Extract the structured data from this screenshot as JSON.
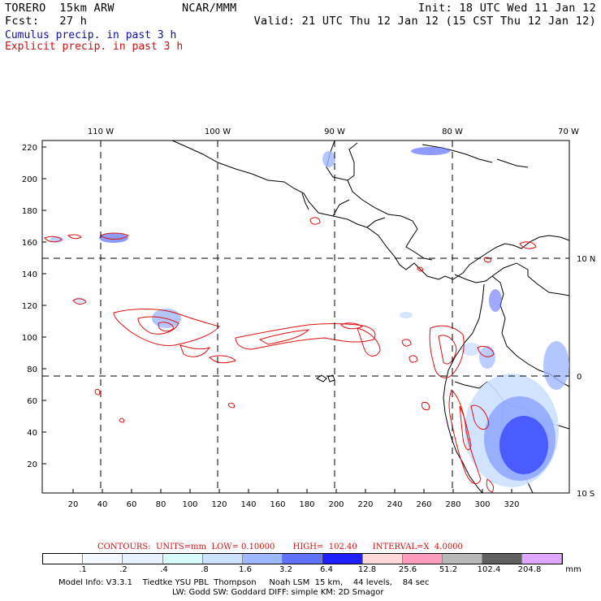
{
  "header": {
    "model": "TORERO  15km ARW",
    "org": "NCAR/MMM",
    "init": "Init: 18 UTC Wed 11 Jan 12",
    "fcst": "Fcst:   27 h",
    "valid": "Valid: 21 UTC Thu 12 Jan 12 (15 CST Thu 12 Jan 12)",
    "legend_cumulus": "Cumulus precip. in past 3 h",
    "legend_explicit": "Explicit precip. in past 3 h"
  },
  "map": {
    "lon_labels": [
      "110 W",
      "100 W",
      "90 W",
      "80 W",
      "70 W"
    ],
    "lat_labels": [
      "10 N",
      "0",
      "10 S"
    ],
    "y_ticks": [
      "220",
      "200",
      "180",
      "160",
      "140",
      "120",
      "100",
      "80",
      "60",
      "40",
      "20"
    ],
    "x_ticks": [
      "20",
      "40",
      "60",
      "80",
      "100",
      "120",
      "140",
      "160",
      "180",
      "200",
      "220",
      "240",
      "260",
      "280",
      "300",
      "320"
    ]
  },
  "colorbar": {
    "contours": "CONTOURS:  UNITS=mm  LOW= 0.10000       HIGH=  102.40      INTERVAL=X  4.0000",
    "labels": [
      ".1",
      ".2",
      ".4",
      ".8",
      "1.6",
      "3.2",
      "6.4",
      "12.8",
      "25.6",
      "51.2",
      "102.4",
      "204.8"
    ],
    "unit": "mm",
    "colors": [
      "#ffffff",
      "#f4f8ff",
      "#e8f2ff",
      "#d8fafa",
      "#cce0ff",
      "#a0b8ff",
      "#6070ff",
      "#2020ff",
      "#ffd8d8",
      "#ff9cc0",
      "#b8b8b8",
      "#606060",
      "#e0a8ff"
    ]
  },
  "footer": {
    "line1": "Model Info: V3.3.1    Tiedtke YSU PBL  Thompson     Noah LSM  15 km,    44 levels,    84 sec",
    "line2": "LW: Godd SW: Goddard DIFF: simple KM: 2D Smagor"
  }
}
